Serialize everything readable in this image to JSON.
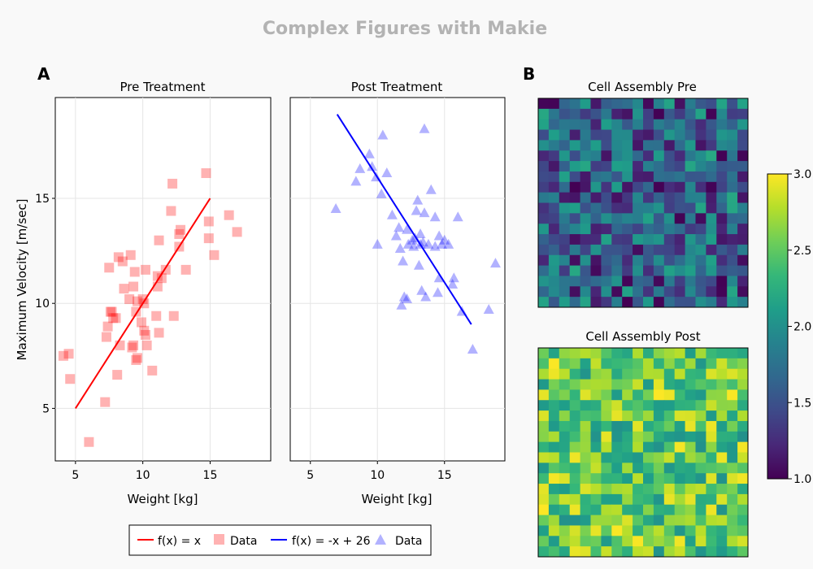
{
  "figure": {
    "title": "Complex Figures with Makie",
    "panel_a_label": "A",
    "panel_b_label": "B"
  },
  "legend": {
    "entries": [
      {
        "label": "f(x) = x",
        "kind": "line",
        "color": "#ff0000"
      },
      {
        "label": "Data",
        "kind": "square",
        "color": "#ff0000"
      },
      {
        "label": "f(x) = -x + 26",
        "kind": "line",
        "color": "#0000ff"
      },
      {
        "label": "Data",
        "kind": "triangle",
        "color": "#0000ff"
      }
    ]
  },
  "colors": {
    "pre": "#ff0000",
    "post": "#0000ff",
    "viridis": [
      "#440154",
      "#482878",
      "#3e4a89",
      "#31688e",
      "#26828e",
      "#1f9e89",
      "#35b779",
      "#6ece58",
      "#b5de2b",
      "#fde725"
    ]
  },
  "chart_data": [
    {
      "id": "pre",
      "type": "scatter",
      "title": "Pre Treatment",
      "xlabel": "Weight [kg]",
      "ylabel": "Maximum Velocity [m/sec]",
      "xlim": [
        3.5,
        19.5
      ],
      "ylim": [
        2.5,
        19.8
      ],
      "xticks": [
        5,
        10,
        15
      ],
      "yticks": [
        5,
        10,
        15
      ],
      "grid": true,
      "line": {
        "name": "f(x) = x",
        "x": [
          5,
          15
        ],
        "y": [
          5,
          15
        ]
      },
      "points": {
        "name": "Data",
        "marker": "square",
        "x": [
          4.1,
          4.5,
          4.6,
          6.0,
          7.2,
          7.3,
          7.4,
          7.5,
          7.6,
          7.7,
          7.8,
          8.0,
          8.1,
          8.2,
          8.3,
          8.5,
          8.6,
          9.0,
          9.1,
          9.2,
          9.3,
          9.3,
          9.4,
          9.5,
          9.5,
          9.6,
          9.6,
          9.9,
          10.0,
          10.1,
          10.1,
          10.2,
          10.2,
          10.3,
          10.7,
          11.0,
          11.1,
          11.1,
          11.2,
          11.2,
          11.4,
          11.7,
          12.1,
          12.2,
          12.3,
          12.7,
          12.7,
          12.8,
          13.2,
          14.7,
          14.9,
          14.9,
          15.3,
          16.4,
          17.0
        ],
        "y": [
          7.5,
          7.6,
          6.4,
          3.4,
          5.3,
          8.4,
          8.9,
          11.7,
          9.6,
          9.6,
          9.3,
          9.3,
          6.6,
          12.2,
          8.0,
          12.0,
          10.7,
          10.2,
          12.3,
          7.9,
          8.0,
          10.8,
          11.5,
          9.6,
          7.3,
          10.1,
          7.4,
          9.1,
          10.2,
          10.0,
          8.7,
          11.6,
          8.5,
          8.0,
          6.8,
          9.4,
          11.3,
          10.8,
          8.6,
          13.0,
          11.2,
          11.6,
          14.4,
          15.7,
          9.4,
          12.7,
          13.3,
          13.5,
          11.6,
          16.2,
          13.1,
          13.9,
          12.3,
          14.2,
          13.4
        ]
      }
    },
    {
      "id": "post",
      "type": "scatter",
      "title": "Post Treatment",
      "xlabel": "Weight [kg]",
      "ylabel": "",
      "xlim": [
        3.5,
        19.5
      ],
      "ylim": [
        2.5,
        19.8
      ],
      "xticks": [
        5,
        10,
        15
      ],
      "yticks": [
        5,
        10,
        15
      ],
      "grid": true,
      "line": {
        "name": "f(x) = -x + 26",
        "x": [
          7,
          17
        ],
        "y": [
          19,
          9
        ]
      },
      "points": {
        "name": "Data",
        "marker": "triangle",
        "x": [
          6.9,
          8.4,
          8.7,
          9.4,
          9.6,
          9.9,
          10.0,
          10.3,
          10.4,
          10.7,
          11.1,
          11.4,
          11.6,
          11.7,
          11.8,
          11.9,
          12.0,
          12.2,
          12.3,
          12.6,
          12.7,
          12.8,
          12.9,
          13.1,
          13.2,
          13.2,
          13.3,
          13.4,
          13.5,
          13.6,
          13.8,
          14.0,
          14.3,
          14.5,
          14.6,
          14.6,
          14.8,
          15.0,
          15.3,
          15.6,
          15.7,
          16.0,
          16.3,
          17.1,
          18.3,
          18.8,
          13.0,
          14.3,
          12.2,
          13.5
        ],
        "y": [
          14.5,
          15.8,
          16.4,
          17.1,
          16.5,
          16.0,
          12.8,
          15.2,
          18.0,
          16.2,
          14.2,
          13.2,
          13.6,
          12.6,
          9.9,
          12.0,
          10.3,
          10.2,
          12.8,
          13.0,
          12.7,
          13.1,
          14.4,
          11.8,
          13.3,
          12.8,
          10.6,
          12.9,
          18.3,
          10.3,
          12.8,
          15.4,
          14.1,
          10.5,
          13.2,
          11.2,
          12.8,
          13.0,
          12.8,
          10.9,
          11.2,
          14.1,
          9.6,
          7.8,
          9.7,
          11.9,
          14.9,
          12.7,
          13.5,
          14.3
        ]
      }
    },
    {
      "id": "cell-pre",
      "type": "heatmap",
      "title": "Cell Assembly Pre",
      "rows": 20,
      "cols": 20,
      "clim": [
        1.0,
        3.0
      ],
      "seed": 12345,
      "value_range": [
        1.0,
        2.2
      ]
    },
    {
      "id": "cell-post",
      "type": "heatmap",
      "title": "Cell Assembly Post",
      "rows": 20,
      "cols": 20,
      "clim": [
        1.0,
        3.0
      ],
      "seed": 67890,
      "value_range": [
        2.0,
        3.0
      ]
    }
  ],
  "colorbar": {
    "ticks": [
      "1.0",
      "1.5",
      "2.0",
      "2.5",
      "3.0"
    ],
    "tick_values": [
      1.0,
      1.5,
      2.0,
      2.5,
      3.0
    ],
    "clim": [
      1.0,
      3.0
    ]
  }
}
